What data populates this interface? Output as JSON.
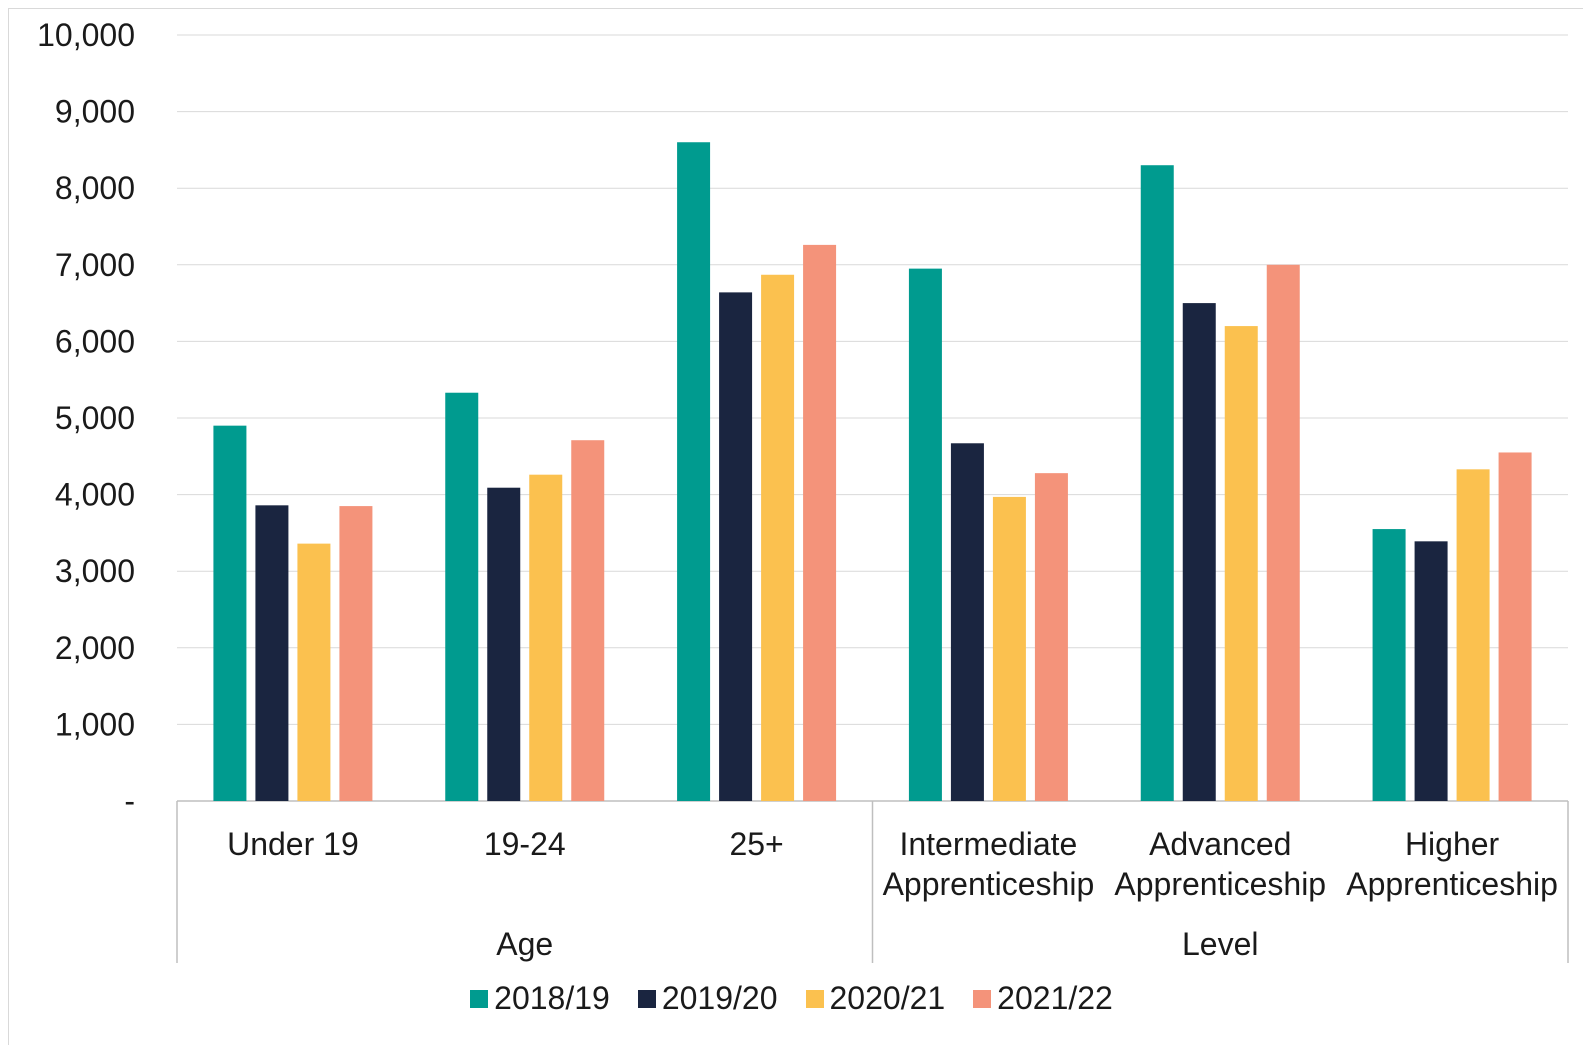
{
  "chart_data": {
    "type": "bar",
    "title": "",
    "groups": [
      {
        "label": "Age",
        "categories": [
          "Under 19",
          "19-24",
          "25+"
        ]
      },
      {
        "label": "Level",
        "categories": [
          "Intermediate\nApprenticeship",
          "Advanced\nApprenticeship",
          "Higher\nApprenticeship"
        ]
      }
    ],
    "categories": [
      "Under 19",
      "19-24",
      "25+",
      "Intermediate\nApprenticeship",
      "Advanced\nApprenticeship",
      "Higher\nApprenticeship"
    ],
    "series": [
      {
        "name": "2018/19",
        "color": "#009b8f",
        "values": [
          4900,
          5330,
          8600,
          6950,
          8300,
          3550
        ]
      },
      {
        "name": "2019/20",
        "color": "#1a2540",
        "values": [
          3860,
          4090,
          6640,
          4670,
          6500,
          3390
        ]
      },
      {
        "name": "2020/21",
        "color": "#fbc14f",
        "values": [
          3360,
          4260,
          6870,
          3970,
          6200,
          4330
        ]
      },
      {
        "name": "2021/22",
        "color": "#f4937a",
        "values": [
          3850,
          4710,
          7260,
          4280,
          7000,
          4550
        ]
      }
    ],
    "ylim": [
      0,
      10000
    ],
    "yticks": [
      "-",
      "1,000",
      "2,000",
      "3,000",
      "4,000",
      "5,000",
      "6,000",
      "7,000",
      "8,000",
      "9,000",
      "10,000"
    ],
    "grid": true,
    "legend_position": "bottom"
  }
}
